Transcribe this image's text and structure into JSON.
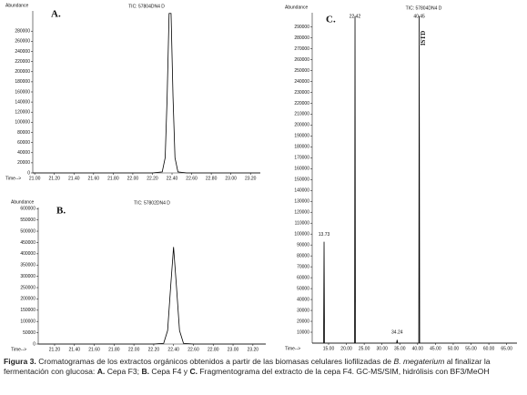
{
  "chart_data": [
    {
      "type": "line",
      "panel_label": "A.",
      "title": "TIC: 57804DN4 D",
      "y_label": "Abundance",
      "x_label": "Time-->",
      "x": [
        20.98,
        22.2,
        22.3,
        22.33,
        22.35,
        22.37,
        22.39,
        22.41,
        22.43,
        22.46,
        22.55,
        23.3
      ],
      "series": [
        {
          "color": "#000000",
          "values": [
            0,
            0,
            2000,
            30000,
            150000,
            315000,
            315000,
            150000,
            30000,
            2000,
            0,
            0
          ]
        }
      ],
      "xlim": [
        20.98,
        23.3
      ],
      "ylim": [
        0,
        320000
      ],
      "xticks": [
        {
          "value": 21,
          "label": "21.00"
        },
        {
          "value": 21.2,
          "label": "21.20"
        },
        {
          "value": 21.4,
          "label": "21.40"
        },
        {
          "value": 21.6,
          "label": "21.60"
        },
        {
          "value": 21.8,
          "label": "21.80"
        },
        {
          "value": 22,
          "label": "22.00"
        },
        {
          "value": 22.2,
          "label": "22.20"
        },
        {
          "value": 22.4,
          "label": "22.40"
        },
        {
          "value": 22.6,
          "label": "22.60"
        },
        {
          "value": 22.8,
          "label": "22.80"
        },
        {
          "value": 23,
          "label": "23.00"
        },
        {
          "value": 23.2,
          "label": "23.20"
        }
      ],
      "yticks": [
        0,
        20000,
        40000,
        60000,
        80000,
        100000,
        120000,
        140000,
        160000,
        180000,
        200000,
        220000,
        240000,
        260000,
        280000
      ]
    },
    {
      "type": "line",
      "panel_label": "B.",
      "title": "TIC: 57802DN4 D",
      "y_label": "Abundance",
      "x_label": "Time-->",
      "x": [
        21.035,
        22.2,
        22.3,
        22.34,
        22.37,
        22.4,
        22.43,
        22.46,
        22.5,
        22.6,
        23.33
      ],
      "series": [
        {
          "color": "#000000",
          "values": [
            0,
            0,
            3000,
            60000,
            250000,
            430000,
            250000,
            60000,
            3000,
            0,
            0
          ]
        }
      ],
      "xlim": [
        21.035,
        23.33
      ],
      "ylim": [
        0,
        605000
      ],
      "xticks": [
        {
          "value": 21.2,
          "label": "21.20"
        },
        {
          "value": 21.4,
          "label": "21.40"
        },
        {
          "value": 21.6,
          "label": "21.60"
        },
        {
          "value": 21.8,
          "label": "21.80"
        },
        {
          "value": 22,
          "label": "22.00"
        },
        {
          "value": 22.2,
          "label": "22.20"
        },
        {
          "value": 22.4,
          "label": "22.40"
        },
        {
          "value": 22.6,
          "label": "22.60"
        },
        {
          "value": 22.8,
          "label": "22.80"
        },
        {
          "value": 23,
          "label": "23.00"
        },
        {
          "value": 23.2,
          "label": "23.20"
        }
      ],
      "yticks": [
        0,
        50000,
        100000,
        150000,
        200000,
        250000,
        300000,
        350000,
        400000,
        450000,
        500000,
        550000,
        600000
      ]
    },
    {
      "type": "line",
      "panel_label": "C.",
      "title": "TIC: 57804DN4 D",
      "y_label": "Abundance",
      "x_label": "Time-->",
      "x": [
        10.4,
        13.6,
        13.73,
        13.86,
        22.3,
        22.42,
        22.54,
        34.1,
        34.24,
        34.38,
        40.33,
        40.45,
        40.57,
        67.9
      ],
      "series": [
        {
          "color": "#000000",
          "values": [
            0,
            0,
            93000,
            0,
            0,
            300000,
            0,
            0,
            3000,
            0,
            0,
            300000,
            0,
            0
          ]
        }
      ],
      "peak_labels": [
        13.73,
        22.42,
        34.24,
        40.45
      ],
      "annotations": [
        "ISTD"
      ],
      "xlim": [
        10.4,
        67.9
      ],
      "ylim": [
        0,
        303000
      ],
      "xticks": [
        {
          "value": 15,
          "label": "15.00"
        },
        {
          "value": 20,
          "label": "20.00"
        },
        {
          "value": 25,
          "label": "25.00"
        },
        {
          "value": 30,
          "label": "30.00"
        },
        {
          "value": 35,
          "label": "35.00"
        },
        {
          "value": 40,
          "label": "40.00"
        },
        {
          "value": 45,
          "label": "45.00"
        },
        {
          "value": 50,
          "label": "50.00"
        },
        {
          "value": 55,
          "label": "55.00"
        },
        {
          "value": 60,
          "label": "60.00"
        },
        {
          "value": 65,
          "label": "65.00"
        }
      ],
      "yticks": [
        10000,
        20000,
        30000,
        40000,
        50000,
        60000,
        70000,
        80000,
        90000,
        100000,
        110000,
        120000,
        130000,
        140000,
        150000,
        160000,
        170000,
        180000,
        190000,
        200000,
        210000,
        220000,
        230000,
        240000,
        250000,
        260000,
        270000,
        280000,
        290000
      ]
    }
  ],
  "caption": [
    "Figura 3.",
    " Cromatogramas de los extractos orgánicos obtenidos a partir de las biomasas celulares liofilizadas de ",
    "B. megaterium",
    " al finalizar la fermentación con glucosa: ",
    "A.",
    " Cepa F3; ",
    "B.",
    " Cepa F4 y ",
    "C.",
    " Fragmentograma del extracto de la cepa F4. GC-MS/SIM, hidrólisis con BF3/MeOH"
  ]
}
